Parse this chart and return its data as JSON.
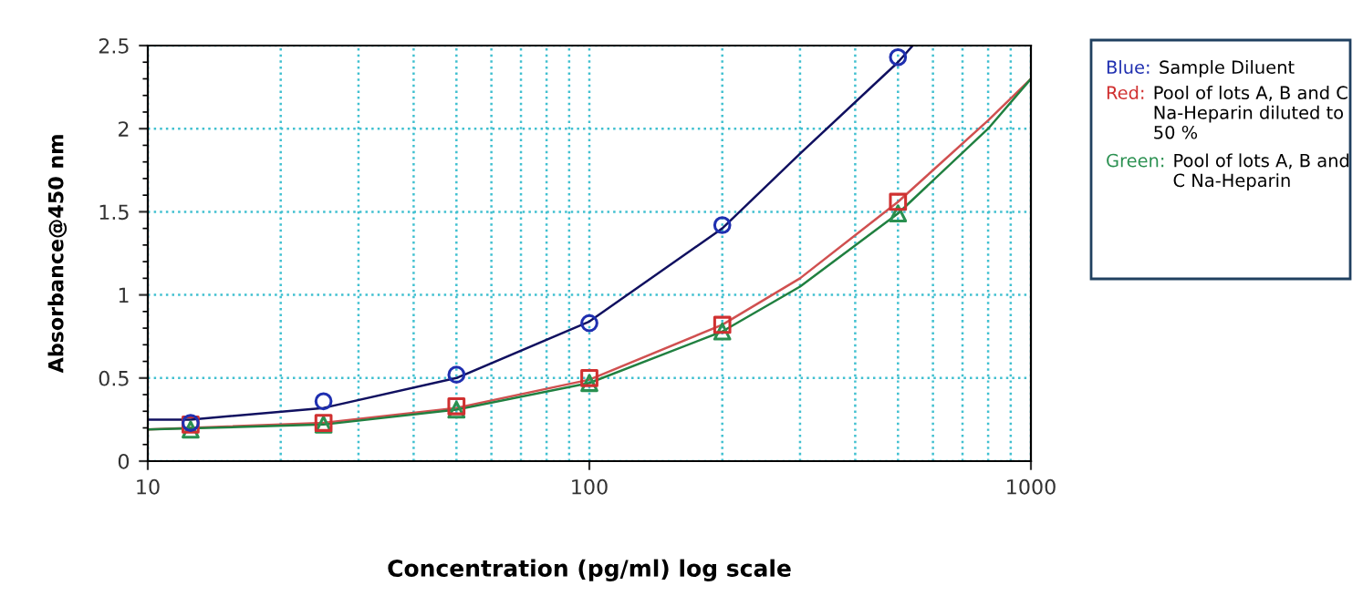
{
  "chart_data": {
    "type": "scatter",
    "xlabel": "Concentration (pg/ml) log scale",
    "ylabel": "Absorbance@450 nm",
    "log": "x",
    "xlim": [
      10,
      1000
    ],
    "xticks": [
      10,
      100,
      1000
    ],
    "ylim": [
      0,
      2.5
    ],
    "yticks": [
      0,
      0.5,
      1,
      1.5,
      2,
      2.5
    ],
    "grid": true,
    "legend": "right",
    "series": [
      {
        "name": "Blue: Sample Diluent",
        "color": "#1f2fb0",
        "marker": "circle",
        "x": [
          12.5,
          25,
          50,
          100,
          200,
          500
        ],
        "values": [
          0.23,
          0.36,
          0.52,
          0.83,
          1.42,
          2.43
        ]
      },
      {
        "name": "Red: Pool of lots A, B and C Na-Heparin diluted to 50 %",
        "color": "#d03030",
        "marker": "square",
        "x": [
          12.5,
          25,
          50,
          100,
          200,
          500
        ],
        "values": [
          0.22,
          0.23,
          0.33,
          0.5,
          0.82,
          1.56
        ]
      },
      {
        "name": "Green: Pool of lots A, B and C Na-Heparin",
        "color": "#2a9050",
        "marker": "triangle",
        "x": [
          12.5,
          25,
          50,
          100,
          200,
          500
        ],
        "values": [
          0.19,
          0.22,
          0.31,
          0.47,
          0.78,
          1.49
        ]
      },
      {
        "type": "line",
        "color": "#101060",
        "marker": "none",
        "x": [
          10,
          12.5,
          25,
          50,
          100,
          200,
          300,
          500,
          540
        ],
        "values": [
          0.25,
          0.25,
          0.32,
          0.5,
          0.84,
          1.4,
          1.85,
          2.4,
          2.5
        ]
      },
      {
        "type": "line",
        "color": "#d05050",
        "marker": "none",
        "x": [
          10,
          25,
          50,
          100,
          200,
          300,
          500,
          800,
          1000
        ],
        "values": [
          0.19,
          0.23,
          0.32,
          0.49,
          0.82,
          1.1,
          1.56,
          2.05,
          2.3
        ]
      },
      {
        "type": "line",
        "color": "#208040",
        "marker": "none",
        "x": [
          10,
          25,
          50,
          100,
          200,
          300,
          500,
          800,
          1000
        ],
        "values": [
          0.19,
          0.22,
          0.31,
          0.47,
          0.78,
          1.05,
          1.49,
          2.0,
          2.3
        ]
      }
    ]
  }
}
